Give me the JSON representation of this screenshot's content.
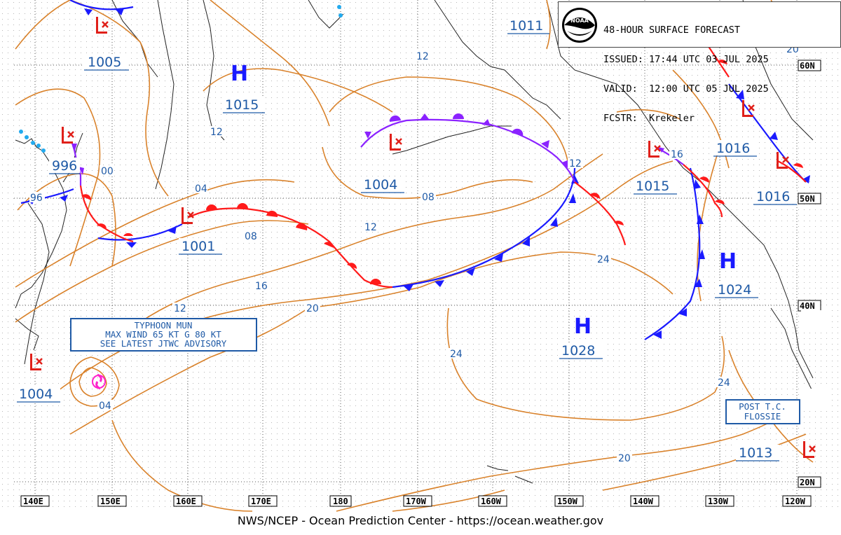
{
  "title": {
    "line1": "48-HOUR SURFACE FORECAST",
    "line2": "ISSUED: 17:44 UTC 03 JUL 2025",
    "line3": "VALID:  12:00 UTC 05 JUL 2025",
    "line4": "FCSTR:  Krekeler"
  },
  "logo": {
    "icon": "noaa-logo-icon",
    "text": "NOAA"
  },
  "footer": "NWS/NCEP - Ocean Prediction Center - https://ocean.weather.gov",
  "longitude_labels": [
    "140E",
    "150E",
    "160E",
    "170E",
    "180",
    "170W",
    "160W",
    "150W",
    "140W",
    "130W",
    "120W"
  ],
  "latitude_labels": [
    "60N",
    "50N",
    "40N",
    "20N"
  ],
  "pressure_centers": [
    {
      "type": "L",
      "value": "1005"
    },
    {
      "type": "H",
      "value": "1015"
    },
    {
      "type": "L",
      "value": "996"
    },
    {
      "type": "L",
      "value": "1001"
    },
    {
      "type": "L",
      "value": "1004"
    },
    {
      "type": "L",
      "value": "1011"
    },
    {
      "type": "L",
      "value": "1016"
    },
    {
      "type": "L",
      "value": "1015"
    },
    {
      "type": "L",
      "value": "1016"
    },
    {
      "type": "H",
      "value": "1024"
    },
    {
      "type": "H",
      "value": "1028"
    },
    {
      "type": "L",
      "value": "1004"
    },
    {
      "type": "L",
      "value": "1013"
    }
  ],
  "isobar_labels": [
    "12",
    "12",
    "00",
    "96",
    "04",
    "08",
    "12",
    "08",
    "12",
    "16",
    "12",
    "20",
    "24",
    "24",
    "20",
    "24",
    "20",
    "16",
    "04"
  ],
  "annotations": {
    "typhoon": [
      "TYPHOON MUN",
      "MAX WIND 65 KT G 80 KT",
      "SEE LATEST JTWC ADVISORY"
    ],
    "post_tc": [
      "POST T.C.",
      "FLOSSIE"
    ]
  },
  "colors": {
    "isobar": "#d9822b",
    "label_blue": "#1f5aa6",
    "cold_front": "#1a1aff",
    "warm_front": "#ff1a1a",
    "occluded_front": "#8b22ff",
    "high": "#1a1aff",
    "low": "#e0201a",
    "coast": "#222222",
    "grid": "#555555"
  }
}
